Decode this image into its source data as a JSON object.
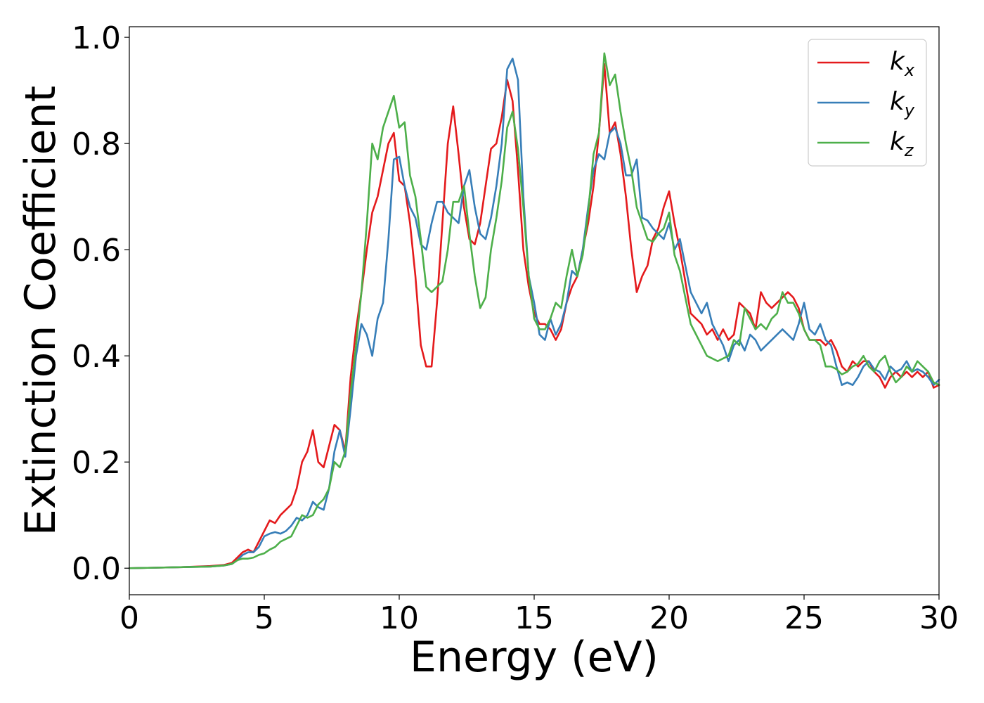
{
  "chart_data": {
    "type": "line",
    "xlabel": "Energy (eV)",
    "ylabel": "Extinction Coefficient",
    "xlim": [
      0,
      30
    ],
    "ylim": [
      -0.05,
      1.02
    ],
    "xticks": [
      0,
      5,
      10,
      15,
      20,
      25,
      30
    ],
    "xtick_labels": [
      "0",
      "5",
      "10",
      "15",
      "20",
      "25",
      "30"
    ],
    "yticks": [
      0.0,
      0.2,
      0.4,
      0.6,
      0.8,
      1.0
    ],
    "ytick_labels": [
      "0.0",
      "0.2",
      "0.4",
      "0.6",
      "0.8",
      "1.0"
    ],
    "grid": false,
    "legend_position": "top-right",
    "series": [
      {
        "name": "k",
        "subscript": "x",
        "color": "#e41a1c",
        "x": [
          0,
          1,
          2,
          3,
          3.5,
          3.8,
          4.0,
          4.2,
          4.4,
          4.6,
          4.8,
          5.0,
          5.2,
          5.4,
          5.6,
          5.8,
          6.0,
          6.2,
          6.4,
          6.6,
          6.8,
          7.0,
          7.2,
          7.4,
          7.6,
          7.8,
          8.0,
          8.2,
          8.4,
          8.6,
          8.8,
          9.0,
          9.2,
          9.4,
          9.6,
          9.8,
          10.0,
          10.2,
          10.4,
          10.6,
          10.8,
          11.0,
          11.2,
          11.4,
          11.6,
          11.8,
          12.0,
          12.2,
          12.4,
          12.6,
          12.8,
          13.0,
          13.2,
          13.4,
          13.6,
          13.8,
          14.0,
          14.2,
          14.4,
          14.6,
          14.8,
          15.0,
          15.2,
          15.4,
          15.6,
          15.8,
          16.0,
          16.2,
          16.4,
          16.6,
          16.8,
          17.0,
          17.2,
          17.4,
          17.6,
          17.8,
          18.0,
          18.2,
          18.4,
          18.6,
          18.8,
          19.0,
          19.2,
          19.4,
          19.6,
          19.8,
          20.0,
          20.2,
          20.4,
          20.6,
          20.8,
          21.0,
          21.2,
          21.4,
          21.6,
          21.8,
          22.0,
          22.2,
          22.4,
          22.6,
          22.8,
          23.0,
          23.2,
          23.4,
          23.6,
          23.8,
          24.0,
          24.2,
          24.4,
          24.6,
          24.8,
          25.0,
          25.2,
          25.4,
          25.6,
          25.8,
          26.0,
          26.2,
          26.4,
          26.6,
          26.8,
          27.0,
          27.2,
          27.4,
          27.6,
          27.8,
          28.0,
          28.2,
          28.4,
          28.6,
          28.8,
          29.0,
          29.2,
          29.4,
          29.6,
          29.8,
          30.0
        ],
        "y": [
          0.0,
          0.001,
          0.002,
          0.004,
          0.006,
          0.01,
          0.02,
          0.03,
          0.035,
          0.03,
          0.05,
          0.07,
          0.09,
          0.085,
          0.1,
          0.11,
          0.12,
          0.15,
          0.2,
          0.22,
          0.26,
          0.2,
          0.19,
          0.23,
          0.27,
          0.26,
          0.22,
          0.36,
          0.45,
          0.52,
          0.6,
          0.67,
          0.7,
          0.75,
          0.8,
          0.82,
          0.73,
          0.72,
          0.65,
          0.55,
          0.42,
          0.38,
          0.38,
          0.5,
          0.65,
          0.8,
          0.87,
          0.78,
          0.68,
          0.62,
          0.61,
          0.65,
          0.72,
          0.79,
          0.8,
          0.85,
          0.92,
          0.88,
          0.75,
          0.6,
          0.53,
          0.48,
          0.46,
          0.46,
          0.45,
          0.43,
          0.45,
          0.5,
          0.53,
          0.55,
          0.6,
          0.65,
          0.72,
          0.82,
          0.95,
          0.82,
          0.84,
          0.78,
          0.7,
          0.6,
          0.52,
          0.55,
          0.57,
          0.62,
          0.64,
          0.68,
          0.71,
          0.65,
          0.6,
          0.54,
          0.48,
          0.47,
          0.46,
          0.44,
          0.45,
          0.43,
          0.45,
          0.43,
          0.44,
          0.5,
          0.49,
          0.48,
          0.45,
          0.52,
          0.5,
          0.49,
          0.5,
          0.51,
          0.52,
          0.51,
          0.49,
          0.45,
          0.43,
          0.43,
          0.43,
          0.42,
          0.43,
          0.41,
          0.38,
          0.37,
          0.39,
          0.38,
          0.39,
          0.39,
          0.37,
          0.36,
          0.34,
          0.36,
          0.37,
          0.36,
          0.37,
          0.36,
          0.37,
          0.36,
          0.37,
          0.34,
          0.345
        ]
      },
      {
        "name": "k",
        "subscript": "y",
        "color": "#377eb8",
        "x": [
          0,
          1,
          2,
          3,
          3.5,
          3.8,
          4.0,
          4.2,
          4.4,
          4.6,
          4.8,
          5.0,
          5.2,
          5.4,
          5.6,
          5.8,
          6.0,
          6.2,
          6.4,
          6.6,
          6.8,
          7.0,
          7.2,
          7.4,
          7.6,
          7.8,
          8.0,
          8.2,
          8.4,
          8.6,
          8.8,
          9.0,
          9.2,
          9.4,
          9.6,
          9.8,
          10.0,
          10.2,
          10.4,
          10.6,
          10.8,
          11.0,
          11.2,
          11.4,
          11.6,
          11.8,
          12.0,
          12.2,
          12.4,
          12.6,
          12.8,
          13.0,
          13.2,
          13.4,
          13.6,
          13.8,
          14.0,
          14.2,
          14.4,
          14.6,
          14.8,
          15.0,
          15.2,
          15.4,
          15.6,
          15.8,
          16.0,
          16.2,
          16.4,
          16.6,
          16.8,
          17.0,
          17.2,
          17.4,
          17.6,
          17.8,
          18.0,
          18.2,
          18.4,
          18.6,
          18.8,
          19.0,
          19.2,
          19.4,
          19.6,
          19.8,
          20.0,
          20.2,
          20.4,
          20.6,
          20.8,
          21.0,
          21.2,
          21.4,
          21.6,
          21.8,
          22.0,
          22.2,
          22.4,
          22.6,
          22.8,
          23.0,
          23.2,
          23.4,
          23.6,
          23.8,
          24.0,
          24.2,
          24.4,
          24.6,
          24.8,
          25.0,
          25.2,
          25.4,
          25.6,
          25.8,
          26.0,
          26.2,
          26.4,
          26.6,
          26.8,
          27.0,
          27.2,
          27.4,
          27.6,
          27.8,
          28.0,
          28.2,
          28.4,
          28.6,
          28.8,
          29.0,
          29.2,
          29.4,
          29.6,
          29.8,
          30.0
        ],
        "y": [
          0.0,
          0.001,
          0.002,
          0.003,
          0.005,
          0.008,
          0.015,
          0.025,
          0.03,
          0.03,
          0.04,
          0.06,
          0.065,
          0.068,
          0.065,
          0.07,
          0.08,
          0.095,
          0.09,
          0.1,
          0.125,
          0.115,
          0.11,
          0.15,
          0.22,
          0.26,
          0.21,
          0.3,
          0.4,
          0.46,
          0.44,
          0.4,
          0.47,
          0.5,
          0.62,
          0.77,
          0.775,
          0.72,
          0.68,
          0.66,
          0.61,
          0.6,
          0.65,
          0.69,
          0.69,
          0.67,
          0.66,
          0.65,
          0.72,
          0.75,
          0.68,
          0.63,
          0.62,
          0.66,
          0.72,
          0.8,
          0.94,
          0.96,
          0.92,
          0.7,
          0.55,
          0.5,
          0.44,
          0.43,
          0.47,
          0.44,
          0.46,
          0.5,
          0.56,
          0.55,
          0.6,
          0.68,
          0.75,
          0.78,
          0.77,
          0.82,
          0.83,
          0.8,
          0.74,
          0.74,
          0.77,
          0.66,
          0.655,
          0.64,
          0.63,
          0.62,
          0.65,
          0.6,
          0.62,
          0.57,
          0.52,
          0.5,
          0.48,
          0.5,
          0.46,
          0.44,
          0.42,
          0.39,
          0.42,
          0.43,
          0.41,
          0.44,
          0.43,
          0.41,
          0.42,
          0.43,
          0.44,
          0.45,
          0.44,
          0.43,
          0.46,
          0.5,
          0.45,
          0.44,
          0.46,
          0.43,
          0.42,
          0.38,
          0.345,
          0.35,
          0.345,
          0.36,
          0.38,
          0.39,
          0.375,
          0.37,
          0.355,
          0.38,
          0.37,
          0.375,
          0.39,
          0.37,
          0.375,
          0.37,
          0.36,
          0.345,
          0.355
        ]
      },
      {
        "name": "k",
        "subscript": "z",
        "color": "#4daf4a",
        "x": [
          0,
          1,
          2,
          3,
          3.5,
          3.8,
          4.0,
          4.2,
          4.4,
          4.6,
          4.8,
          5.0,
          5.2,
          5.4,
          5.6,
          5.8,
          6.0,
          6.2,
          6.4,
          6.6,
          6.8,
          7.0,
          7.2,
          7.4,
          7.6,
          7.8,
          8.0,
          8.2,
          8.4,
          8.6,
          8.8,
          9.0,
          9.2,
          9.4,
          9.6,
          9.8,
          10.0,
          10.2,
          10.4,
          10.6,
          10.8,
          11.0,
          11.2,
          11.4,
          11.6,
          11.8,
          12.0,
          12.2,
          12.4,
          12.6,
          12.8,
          13.0,
          13.2,
          13.4,
          13.6,
          13.8,
          14.0,
          14.2,
          14.4,
          14.6,
          14.8,
          15.0,
          15.2,
          15.4,
          15.6,
          15.8,
          16.0,
          16.2,
          16.4,
          16.6,
          16.8,
          17.0,
          17.2,
          17.4,
          17.6,
          17.8,
          18.0,
          18.2,
          18.4,
          18.6,
          18.8,
          19.0,
          19.2,
          19.4,
          19.6,
          19.8,
          20.0,
          20.2,
          20.4,
          20.6,
          20.8,
          21.0,
          21.2,
          21.4,
          21.6,
          21.8,
          22.0,
          22.2,
          22.4,
          22.6,
          22.8,
          23.0,
          23.2,
          23.4,
          23.6,
          23.8,
          24.0,
          24.2,
          24.4,
          24.6,
          24.8,
          25.0,
          25.2,
          25.4,
          25.6,
          25.8,
          26.0,
          26.2,
          26.4,
          26.6,
          26.8,
          27.0,
          27.2,
          27.4,
          27.6,
          27.8,
          28.0,
          28.2,
          28.4,
          28.6,
          28.8,
          29.0,
          29.2,
          29.4,
          29.6,
          29.8,
          30.0
        ],
        "y": [
          0.0,
          0.001,
          0.002,
          0.003,
          0.005,
          0.008,
          0.015,
          0.018,
          0.018,
          0.02,
          0.025,
          0.028,
          0.035,
          0.04,
          0.05,
          0.055,
          0.06,
          0.08,
          0.1,
          0.095,
          0.1,
          0.12,
          0.13,
          0.15,
          0.2,
          0.19,
          0.22,
          0.33,
          0.42,
          0.52,
          0.65,
          0.8,
          0.77,
          0.83,
          0.86,
          0.89,
          0.83,
          0.84,
          0.74,
          0.7,
          0.62,
          0.53,
          0.52,
          0.53,
          0.54,
          0.6,
          0.69,
          0.69,
          0.72,
          0.63,
          0.55,
          0.49,
          0.51,
          0.6,
          0.66,
          0.73,
          0.83,
          0.86,
          0.79,
          0.68,
          0.55,
          0.47,
          0.45,
          0.45,
          0.47,
          0.5,
          0.49,
          0.55,
          0.6,
          0.55,
          0.59,
          0.67,
          0.78,
          0.82,
          0.97,
          0.91,
          0.93,
          0.86,
          0.8,
          0.75,
          0.68,
          0.65,
          0.62,
          0.615,
          0.63,
          0.64,
          0.67,
          0.59,
          0.56,
          0.51,
          0.46,
          0.44,
          0.42,
          0.4,
          0.395,
          0.39,
          0.395,
          0.4,
          0.43,
          0.42,
          0.49,
          0.47,
          0.45,
          0.46,
          0.45,
          0.47,
          0.48,
          0.52,
          0.5,
          0.5,
          0.48,
          0.45,
          0.43,
          0.43,
          0.42,
          0.38,
          0.38,
          0.375,
          0.365,
          0.37,
          0.38,
          0.385,
          0.4,
          0.38,
          0.37,
          0.39,
          0.4,
          0.37,
          0.35,
          0.36,
          0.38,
          0.37,
          0.39,
          0.38,
          0.37,
          0.35,
          0.345
        ]
      }
    ]
  }
}
